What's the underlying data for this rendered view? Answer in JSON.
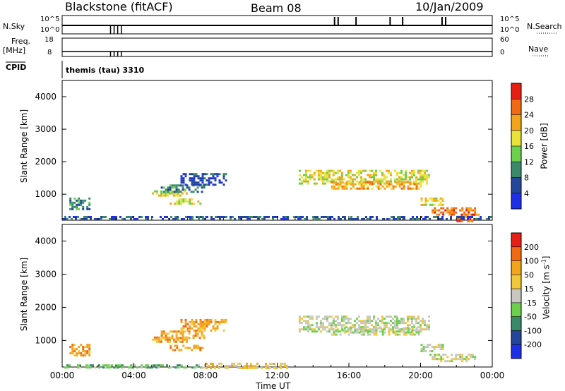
{
  "header": {
    "radar": "Blackstone (fitACF)",
    "beam": "Beam 08",
    "date": "10/Jan/2009",
    "cpid_label": "CPID",
    "cpid_value": "themis (tau) 3310"
  },
  "status_panels": {
    "nsky_label": "N.Sky",
    "nsky_top": "10^5",
    "nsky_bottom": "10^0",
    "nsearch_label": "N.Search",
    "nsearch_top": "10^5",
    "nsearch_bottom": "10^0",
    "freq_label": "Freq.",
    "freq_unit": "[MHz]",
    "freq_top": "18",
    "freq_bottom": "8",
    "nave_label": "Nave",
    "nave_top": "60",
    "nave_bottom": "0"
  },
  "chart_data": [
    {
      "type": "heatmap",
      "name_key": "power",
      "ylabel": "Slant Range [km]",
      "xlabel": "",
      "yticks": [
        1000,
        2000,
        3000,
        4000
      ],
      "ylim": [
        200,
        4500
      ],
      "xlim_hours": [
        0,
        24
      ],
      "colorbar_label": "Power [dB]",
      "colorbar_ticks": [
        "4",
        "8",
        "12",
        "16",
        "20",
        "24",
        "28"
      ],
      "colorbar_colors": [
        "#1f2fe6",
        "#23459a",
        "#3a8a6a",
        "#6dcf4e",
        "#e8e23a",
        "#f2a41c",
        "#f06a14",
        "#e51f14"
      ],
      "regions": [
        {
          "t0": 0.4,
          "t1": 1.5,
          "r0": 550,
          "r1": 900,
          "level": 2
        },
        {
          "t0": 5.0,
          "t1": 6.9,
          "r0": 950,
          "r1": 1120,
          "level": 4
        },
        {
          "t0": 5.5,
          "t1": 7.9,
          "r0": 1100,
          "r1": 1300,
          "level": 2
        },
        {
          "t0": 6.6,
          "t1": 9.2,
          "r0": 1300,
          "r1": 1650,
          "level": 1
        },
        {
          "t0": 6.0,
          "t1": 7.8,
          "r0": 700,
          "r1": 870,
          "level": 4
        },
        {
          "t0": 13.2,
          "t1": 20.5,
          "r0": 1300,
          "r1": 1750,
          "level": 4
        },
        {
          "t0": 15.0,
          "t1": 20.0,
          "r0": 1200,
          "r1": 1400,
          "level": 5
        },
        {
          "t0": 20.0,
          "t1": 21.2,
          "r0": 650,
          "r1": 900,
          "level": 4
        },
        {
          "t0": 20.5,
          "t1": 23.0,
          "r0": 350,
          "r1": 600,
          "level": 6
        },
        {
          "t0": 22.0,
          "t1": 23.2,
          "r0": 200,
          "r1": 400,
          "level": 6
        },
        {
          "t0": 0.0,
          "t1": 24.0,
          "r0": 200,
          "r1": 330,
          "level": 1
        }
      ]
    },
    {
      "type": "heatmap",
      "name_key": "velocity",
      "ylabel": "Slant Range [km]",
      "xlabel": "Time UT",
      "yticks": [
        1000,
        2000,
        3000,
        4000
      ],
      "ylim": [
        200,
        4500
      ],
      "xlim_hours": [
        0,
        24
      ],
      "xticks": [
        "00:00",
        "04:00",
        "08:00",
        "12:00",
        "16:00",
        "20:00",
        "00:00"
      ],
      "colorbar_label": "Velocity [m s^-1]",
      "colorbar_ticks": [
        "200",
        "100",
        "50",
        "15",
        "-15",
        "-50",
        "-100",
        "-200"
      ],
      "colorbar_colors": [
        "#1f2fe6",
        "#23459a",
        "#3a8a6a",
        "#6dcf4e",
        "#c8c8c0",
        "#f2c83a",
        "#f2a41c",
        "#f06a14",
        "#e51f14"
      ],
      "regions": [
        {
          "t0": 0.4,
          "t1": 1.5,
          "r0": 550,
          "r1": 900,
          "level": 6
        },
        {
          "t0": 5.0,
          "t1": 6.9,
          "r0": 950,
          "r1": 1120,
          "level": 6
        },
        {
          "t0": 5.5,
          "t1": 7.9,
          "r0": 1100,
          "r1": 1300,
          "level": 6
        },
        {
          "t0": 6.6,
          "t1": 9.2,
          "r0": 1300,
          "r1": 1650,
          "level": 6
        },
        {
          "t0": 6.0,
          "t1": 7.8,
          "r0": 700,
          "r1": 870,
          "level": 6
        },
        {
          "t0": 13.2,
          "t1": 20.5,
          "r0": 1300,
          "r1": 1750,
          "level": 4
        },
        {
          "t0": 15.0,
          "t1": 20.0,
          "r0": 1200,
          "r1": 1400,
          "level": 4
        },
        {
          "t0": 20.0,
          "t1": 21.2,
          "r0": 650,
          "r1": 900,
          "level": 4
        },
        {
          "t0": 20.5,
          "t1": 23.0,
          "r0": 350,
          "r1": 600,
          "level": 4
        },
        {
          "t0": 8.0,
          "t1": 12.5,
          "r0": 200,
          "r1": 330,
          "level": 5
        },
        {
          "t0": 0.0,
          "t1": 8.0,
          "r0": 200,
          "r1": 280,
          "level": 3
        }
      ]
    }
  ]
}
